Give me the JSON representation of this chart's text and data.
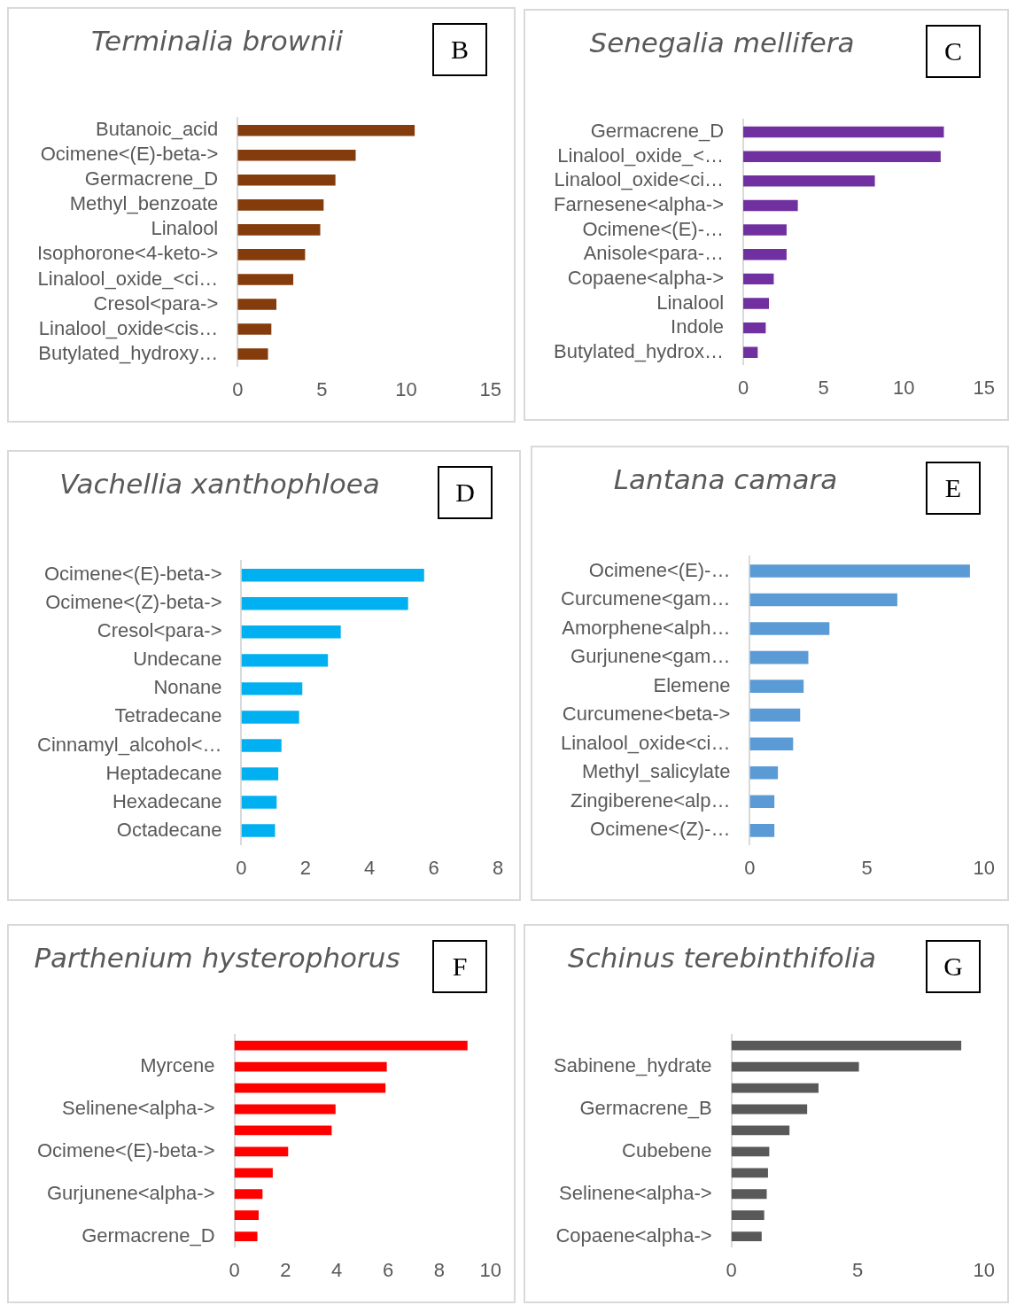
{
  "chart_data": [
    {
      "type": "bar",
      "orientation": "horizontal",
      "title": "Terminalia brownii",
      "annotations": [
        "B"
      ],
      "categories": [
        "Butanoic_acid",
        "Ocimene<(E)-beta->",
        "Germacrene_D",
        "Methyl_benzoate",
        "Linalool",
        "Isophorone<4-keto->",
        "Linalool_oxide_<ci…",
        "Cresol<para->",
        "Linalool_oxide<cis…",
        "Butylated_hydroxy…"
      ],
      "values": [
        10.5,
        7.0,
        5.8,
        5.1,
        4.9,
        4.0,
        3.3,
        2.3,
        2.0,
        1.8
      ],
      "color": "#843c0c",
      "xlim": [
        0,
        15
      ],
      "xticks": [
        0,
        5,
        10,
        15
      ],
      "grid": false
    },
    {
      "type": "bar",
      "orientation": "horizontal",
      "title": "Senegalia mellifera",
      "annotations": [
        "C"
      ],
      "categories": [
        "Germacrene_D",
        "Linalool_oxide_<…",
        "Linalool_oxide<ci…",
        "Farnesene<alpha->",
        "Ocimene<(E)-…",
        "Anisole<para-…",
        "Copaene<alpha->",
        "Linalool",
        "Indole",
        "Butylated_hydrox…"
      ],
      "values": [
        12.5,
        12.3,
        8.2,
        3.4,
        2.7,
        2.7,
        1.9,
        1.6,
        1.4,
        0.9
      ],
      "color": "#7030a0",
      "xlim": [
        0,
        15
      ],
      "xticks": [
        0,
        5,
        10,
        15
      ],
      "grid": false
    },
    {
      "type": "bar",
      "orientation": "horizontal",
      "title": "Vachellia xanthophloea",
      "annotations": [
        "D"
      ],
      "categories": [
        "Ocimene<(E)-beta->",
        "Ocimene<(Z)-beta->",
        "Cresol<para->",
        "Undecane",
        "Nonane",
        "Tetradecane",
        "Cinnamyl_alcohol<…",
        "Heptadecane",
        "Hexadecane",
        "Octadecane"
      ],
      "values": [
        5.7,
        5.2,
        3.1,
        2.7,
        1.9,
        1.8,
        1.25,
        1.15,
        1.1,
        1.05
      ],
      "color": "#00b0f0",
      "xlim": [
        0,
        8
      ],
      "xticks": [
        0,
        2,
        4,
        6,
        8
      ],
      "grid": false
    },
    {
      "type": "bar",
      "orientation": "horizontal",
      "title": "Lantana camara",
      "annotations": [
        "E"
      ],
      "categories": [
        "Ocimene<(E)-…",
        "Curcumene<gam…",
        "Amorphene<alph…",
        "Gurjunene<gam…",
        "Elemene",
        "Curcumene<beta->",
        "Linalool_oxide<ci…",
        "Methyl_salicylate",
        "Zingiberene<alp…",
        "Ocimene<(Z)-…"
      ],
      "values": [
        9.4,
        6.3,
        3.4,
        2.5,
        2.3,
        2.15,
        1.85,
        1.2,
        1.05,
        1.05
      ],
      "color": "#5b9bd5",
      "xlim": [
        0,
        10
      ],
      "xticks": [
        0,
        5,
        10
      ],
      "grid": false
    },
    {
      "type": "bar",
      "orientation": "horizontal",
      "title": "Parthenium hysterophorus",
      "annotations": [
        "F"
      ],
      "categories": [
        null,
        "Myrcene",
        null,
        "Selinene<alpha->",
        null,
        "Ocimene<(E)-beta->",
        null,
        "Gurjunene<alpha->",
        null,
        "Germacrene_D"
      ],
      "values": [
        9.1,
        5.95,
        5.9,
        3.95,
        3.8,
        2.1,
        1.5,
        1.1,
        0.95,
        0.9
      ],
      "color": "#ff0000",
      "xlim": [
        0,
        10
      ],
      "xticks": [
        0,
        2,
        4,
        6,
        8,
        10
      ],
      "grid": false
    },
    {
      "type": "bar",
      "orientation": "horizontal",
      "title": "Schinus terebinthifolia",
      "annotations": [
        "G"
      ],
      "categories": [
        null,
        "Sabinene_hydrate",
        null,
        "Germacrene_B",
        null,
        "Cubebene",
        null,
        "Selinene<alpha->",
        null,
        "Copaene<alpha->"
      ],
      "values": [
        9.1,
        5.05,
        3.45,
        3.0,
        2.3,
        1.5,
        1.45,
        1.4,
        1.3,
        1.2
      ],
      "color": "#595959",
      "xlim": [
        0,
        10
      ],
      "xticks": [
        0,
        5,
        10
      ],
      "grid": false
    }
  ]
}
